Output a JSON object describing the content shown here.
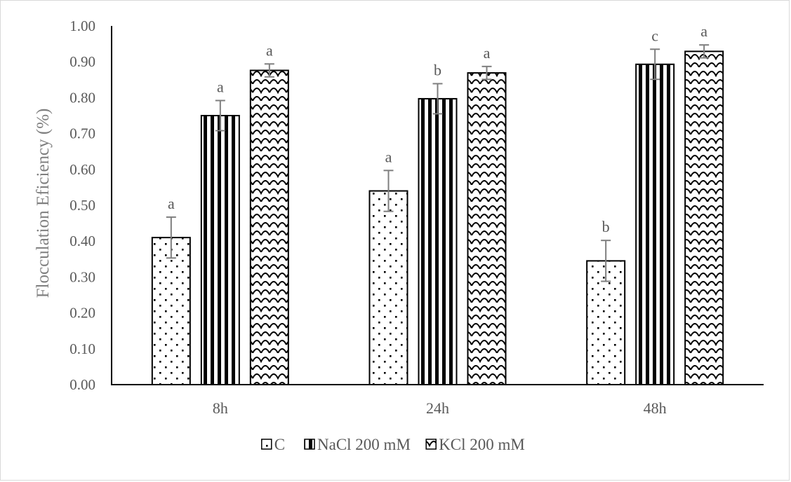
{
  "chart_data": {
    "type": "bar",
    "title": "",
    "xlabel": "",
    "ylabel": "Flocculation Eficiency (%)",
    "ylim": [
      0,
      1.0
    ],
    "yticks": [
      "0.00",
      "0.10",
      "0.20",
      "0.30",
      "0.40",
      "0.50",
      "0.60",
      "0.70",
      "0.80",
      "0.90",
      "1.00"
    ],
    "categories": [
      "8h",
      "24h",
      "48h"
    ],
    "grid": false,
    "legend_position": "bottom",
    "series": [
      {
        "name": "C",
        "pattern": "dots",
        "values": [
          0.41,
          0.54,
          0.345
        ],
        "errors": [
          0.057,
          0.057,
          0.057
        ],
        "significance": [
          "a",
          "a",
          "b"
        ]
      },
      {
        "name": "NaCl 200 mM",
        "pattern": "vertical-stripes",
        "values": [
          0.75,
          0.797,
          0.893
        ],
        "errors": [
          0.042,
          0.042,
          0.042
        ],
        "significance": [
          "a",
          "b",
          "c"
        ]
      },
      {
        "name": "KCl 200 mM",
        "pattern": "scales",
        "values": [
          0.876,
          0.869,
          0.929
        ],
        "errors": [
          0.018,
          0.018,
          0.018
        ],
        "significance": [
          "a",
          "a",
          "a"
        ]
      }
    ]
  }
}
